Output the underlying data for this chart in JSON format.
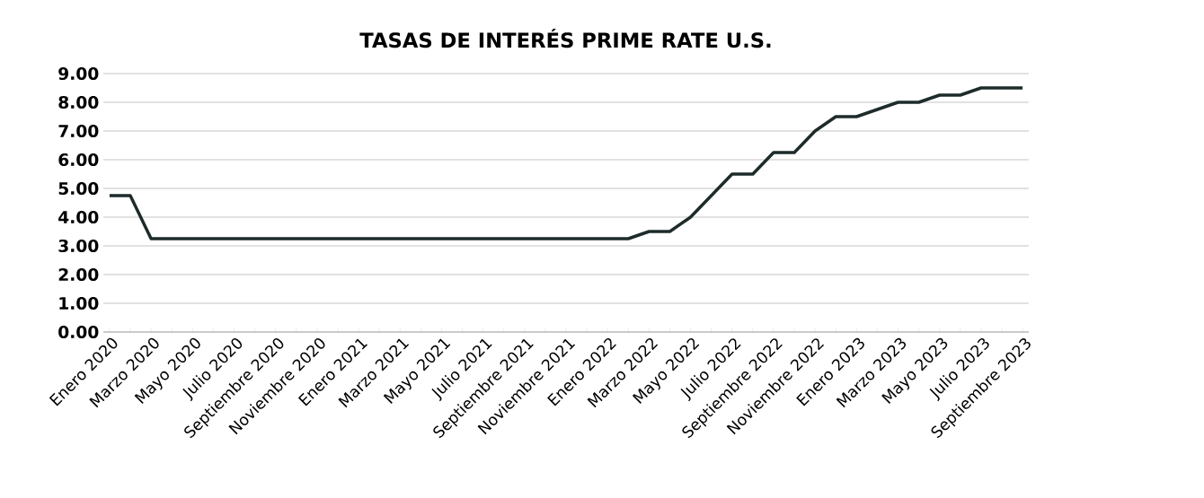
{
  "chart_data": {
    "type": "line",
    "title": "TASAS DE INTERÉS PRIME RATE U.S.",
    "categories": [
      "Enero 2020",
      null,
      "Marzo 2020",
      null,
      "Mayo 2020",
      null,
      "Julio 2020",
      null,
      "Septiembre 2020",
      null,
      "Noviembre 2020",
      null,
      "Enero 2021",
      null,
      "Marzo 2021",
      null,
      "Mayo 2021",
      null,
      "Julio 2021",
      null,
      "Septiembre 2021",
      null,
      "Noviembre 2021",
      null,
      "Enero 2022",
      null,
      "Marzo 2022",
      null,
      "Mayo 2022",
      null,
      "Julio 2022",
      null,
      "Septiembre 2022",
      null,
      "Noviembre 2022",
      null,
      "Enero 2023",
      null,
      "Marzo 2023",
      null,
      "Mayo 2023",
      null,
      "Julio 2023",
      null,
      "Septiembre 2023"
    ],
    "series": [
      {
        "color": "#1e2b2b",
        "values": [
          4.75,
          4.75,
          3.25,
          3.25,
          3.25,
          3.25,
          3.25,
          3.25,
          3.25,
          3.25,
          3.25,
          3.25,
          3.25,
          3.25,
          3.25,
          3.25,
          3.25,
          3.25,
          3.25,
          3.25,
          3.25,
          3.25,
          3.25,
          3.25,
          3.25,
          3.25,
          3.5,
          3.5,
          4.0,
          4.75,
          5.5,
          5.5,
          6.25,
          6.25,
          7.0,
          7.5,
          7.5,
          7.75,
          8.0,
          8.0,
          8.25,
          8.25,
          8.5,
          8.5,
          8.5
        ]
      }
    ],
    "ylim": [
      0,
      9
    ],
    "yticks": [
      {
        "value": 0,
        "label": "0.00"
      },
      {
        "value": 1,
        "label": "1.00"
      },
      {
        "value": 2,
        "label": "2.00"
      },
      {
        "value": 3,
        "label": "3.00"
      },
      {
        "value": 4,
        "label": "4.00"
      },
      {
        "value": 5,
        "label": "5.00"
      },
      {
        "value": 6,
        "label": "6.00"
      },
      {
        "value": 7,
        "label": "7.00"
      },
      {
        "value": 8,
        "label": "8.00"
      },
      {
        "value": 9,
        "label": "9.00"
      }
    ],
    "grid": "y"
  }
}
